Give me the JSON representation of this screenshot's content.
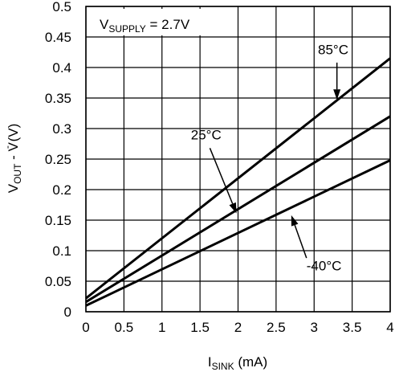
{
  "chart_data": {
    "type": "line",
    "xlabel": {
      "main": "I",
      "sub": "SINK",
      "unit": " (mA)"
    },
    "ylabel": {
      "v": "V",
      "out_sub": "OUT",
      "sep": " - ",
      "v2": "V",
      "sup": "-",
      "unit": " (V)"
    },
    "annotation": {
      "v": "V",
      "sub": "SUPPLY",
      "text": " = 2.7V"
    },
    "xlim": [
      0,
      4
    ],
    "ylim": [
      0,
      0.5
    ],
    "xticks": [
      0,
      0.5,
      1,
      1.5,
      2,
      2.5,
      3,
      3.5,
      4
    ],
    "xtick_labels": [
      "0",
      "0.5",
      "1",
      "1.5",
      "2",
      "2.5",
      "3",
      "3.5",
      "4"
    ],
    "yticks": [
      0,
      0.05,
      0.1,
      0.15,
      0.2,
      0.25,
      0.3,
      0.35,
      0.4,
      0.45,
      0.5
    ],
    "ytick_labels": [
      "0",
      "0.05",
      "0.1",
      "0.15",
      "0.2",
      "0.25",
      "0.3",
      "0.35",
      "0.4",
      "0.45",
      "0.5"
    ],
    "grid": true,
    "series": [
      {
        "name": "85°C",
        "x": [
          0,
          4
        ],
        "y": [
          0.022,
          0.415
        ]
      },
      {
        "name": "25°C",
        "x": [
          0,
          4
        ],
        "y": [
          0.016,
          0.32
        ]
      },
      {
        "name": "-40°C",
        "x": [
          0,
          4
        ],
        "y": [
          0.01,
          0.248
        ]
      }
    ],
    "series_labels": [
      {
        "series": "85°C",
        "label": "85°C",
        "label_at": [
          3.05,
          0.422
        ],
        "arrow_from": [
          3.3,
          0.408
        ],
        "arrow_to": [
          3.3,
          0.347
        ]
      },
      {
        "series": "25°C",
        "label": "25°C",
        "label_at": [
          1.38,
          0.282
        ],
        "arrow_from": [
          1.63,
          0.268
        ],
        "arrow_to": [
          1.98,
          0.161
        ]
      },
      {
        "series": "-40°C",
        "label": "-40°C",
        "label_at": [
          2.9,
          0.068
        ],
        "arrow_from": [
          2.9,
          0.088
        ],
        "arrow_to": [
          2.7,
          0.158
        ]
      }
    ]
  }
}
